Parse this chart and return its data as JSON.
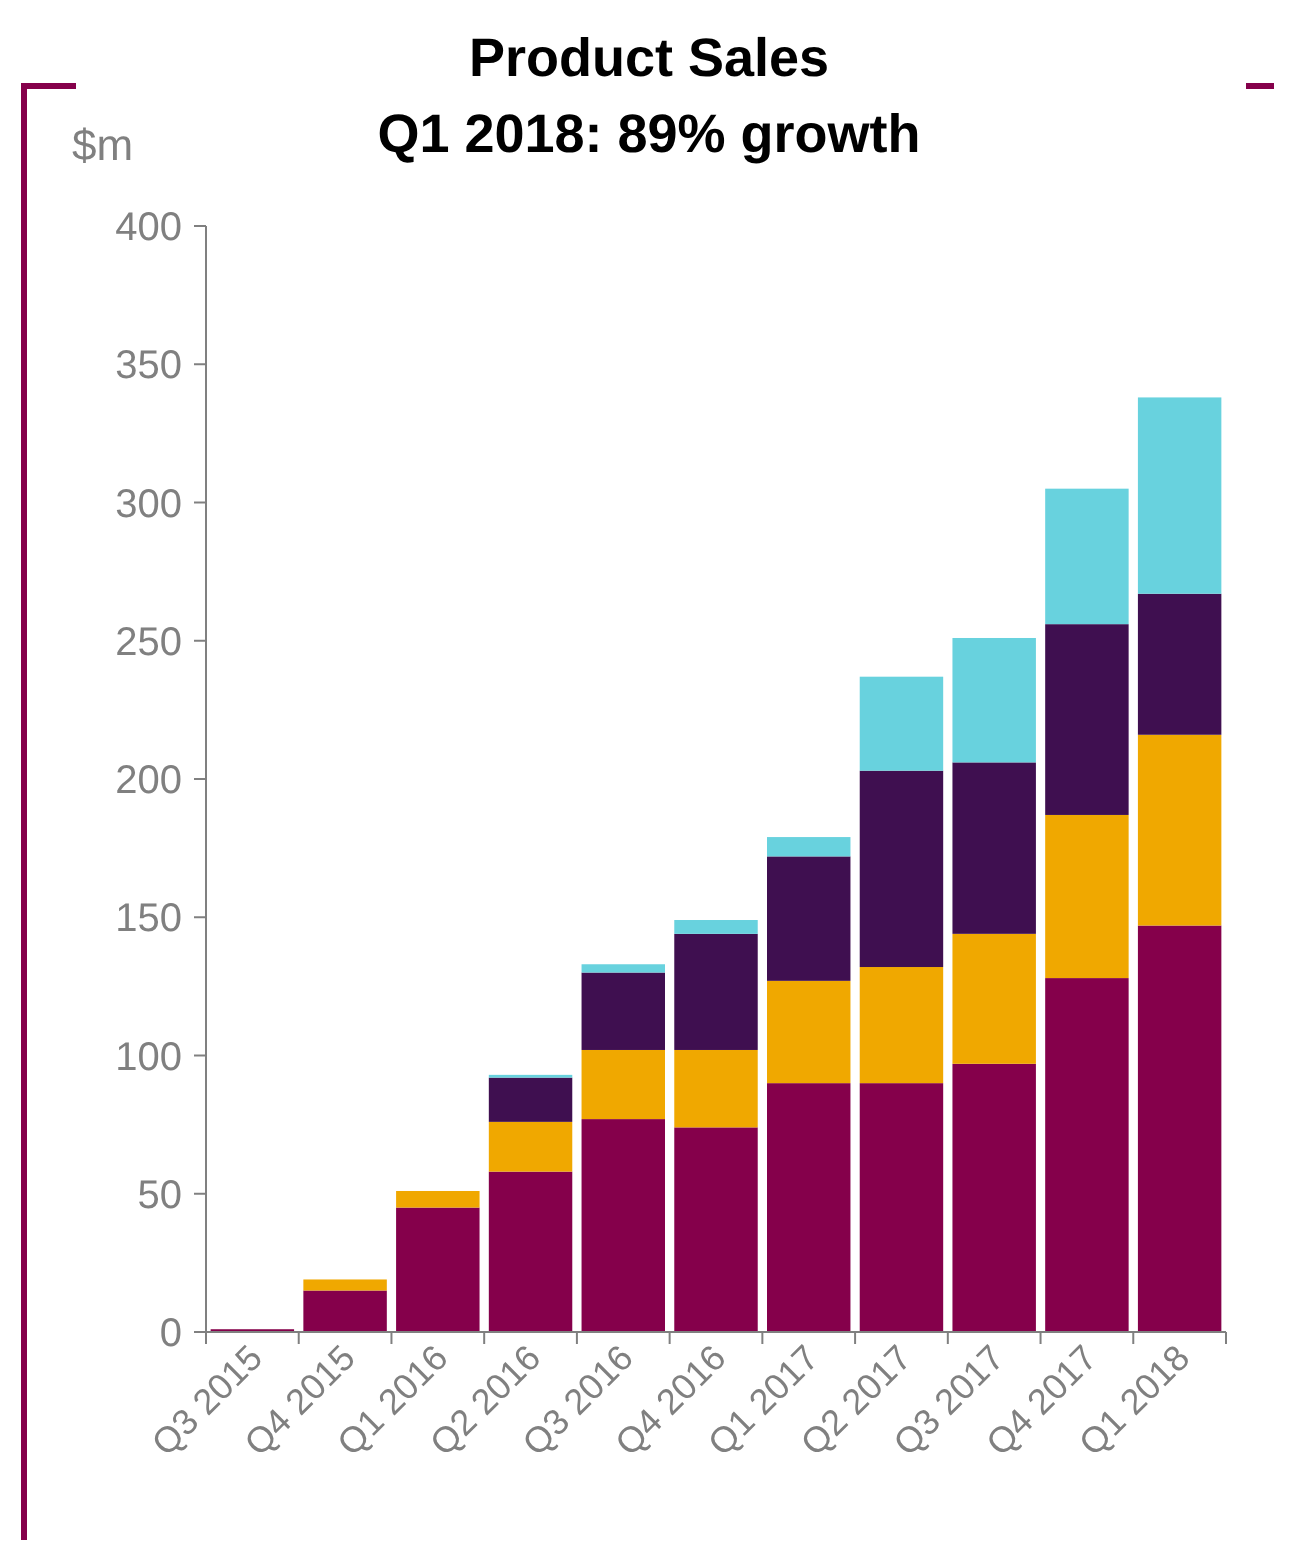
{
  "chart_data": {
    "type": "bar",
    "title": "Product Sales",
    "subtitle": "Q1 2018: 89% growth",
    "ylabel": "$m",
    "stacked": true,
    "categories": [
      "Q3 2015",
      "Q4 2015",
      "Q1 2016",
      "Q2 2016",
      "Q3 2016",
      "Q4 2016",
      "Q1 2017",
      "Q2 2017",
      "Q3 2017",
      "Q4 2017",
      "Q1 2018"
    ],
    "series": [
      {
        "color": "#85004b",
        "values": [
          1,
          15,
          45,
          58,
          77,
          74,
          90,
          90,
          97,
          128,
          147
        ]
      },
      {
        "color": "#f0a800",
        "values": [
          0,
          4,
          6,
          18,
          25,
          28,
          37,
          42,
          47,
          59,
          69
        ]
      },
      {
        "color": "#3f0f50",
        "values": [
          0,
          0,
          0,
          16,
          28,
          42,
          45,
          71,
          62,
          69,
          51
        ]
      },
      {
        "color": "#68d2de",
        "values": [
          0,
          0,
          0,
          1,
          3,
          5,
          7,
          34,
          45,
          49,
          71
        ]
      }
    ],
    "ylim": [
      0,
      400
    ],
    "yticks": [
      0,
      50,
      100,
      150,
      200,
      250,
      300,
      350,
      400
    ],
    "grid": false
  }
}
